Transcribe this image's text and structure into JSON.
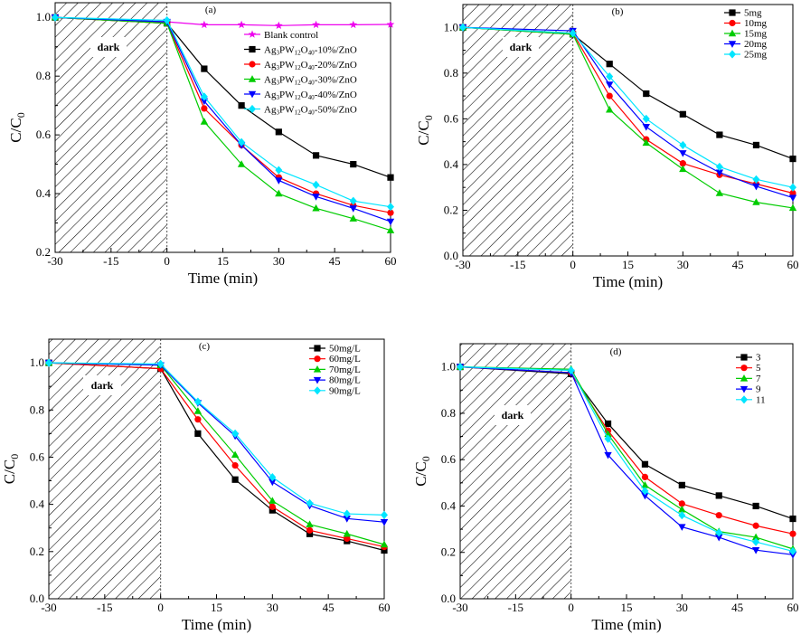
{
  "chart_data": [
    {
      "type": "line",
      "panel_label": "(a)",
      "xlabel": "Time (min)",
      "ylabel": "C/C0",
      "xlim": [
        -30,
        60
      ],
      "ylim": [
        0.2,
        1.05
      ],
      "xticks": [
        -30,
        -15,
        0,
        15,
        30,
        45,
        60
      ],
      "xtick_labels": [
        "-30",
        "-15",
        "0",
        "15",
        "30",
        "45",
        "60"
      ],
      "yticks": [
        0.2,
        0.4,
        0.6,
        0.8,
        1.0
      ],
      "ytick_labels": [
        "0.2",
        "0.4",
        "0.6",
        "0.8",
        "1.0"
      ],
      "dark_region": {
        "label": "dark",
        "x_start": -30,
        "x_end": 0
      },
      "legend_position": "top-right",
      "x": [
        -30,
        0,
        10,
        20,
        30,
        40,
        50,
        60
      ],
      "series": [
        {
          "name": "Blank control",
          "color": "#ee00ee",
          "marker": "star",
          "values": [
            1.0,
            0.985,
            0.975,
            0.975,
            0.972,
            0.975,
            0.975,
            0.976
          ]
        },
        {
          "name": "Ag3PW12O40-10%/ZnO",
          "color": "#000000",
          "marker": "square",
          "values": [
            1.0,
            0.98,
            0.825,
            0.7,
            0.61,
            0.53,
            0.5,
            0.455
          ]
        },
        {
          "name": "Ag3PW12O40-20%/ZnO",
          "color": "#ff0000",
          "marker": "circle",
          "values": [
            1.0,
            0.98,
            0.69,
            0.565,
            0.455,
            0.4,
            0.36,
            0.335
          ]
        },
        {
          "name": "Ag3PW12O40-30%/ZnO",
          "color": "#00cc00",
          "marker": "triangle-up",
          "values": [
            1.0,
            0.98,
            0.645,
            0.5,
            0.4,
            0.35,
            0.315,
            0.275
          ]
        },
        {
          "name": "Ag3PW12O40-40%/ZnO",
          "color": "#0000ff",
          "marker": "triangle-down",
          "values": [
            1.0,
            0.985,
            0.715,
            0.565,
            0.445,
            0.39,
            0.35,
            0.305
          ]
        },
        {
          "name": "Ag3PW12O40-50%/ZnO",
          "color": "#00e5ff",
          "marker": "diamond",
          "values": [
            1.0,
            0.99,
            0.73,
            0.575,
            0.48,
            0.43,
            0.375,
            0.355
          ]
        }
      ]
    },
    {
      "type": "line",
      "panel_label": "(b)",
      "xlabel": "Time (min)",
      "ylabel": "C/C0",
      "xlim": [
        -30,
        60
      ],
      "ylim": [
        0.0,
        1.1
      ],
      "xticks": [
        -30,
        -15,
        0,
        15,
        30,
        45,
        60
      ],
      "xtick_labels": [
        "-30",
        "-15",
        "0",
        "15",
        "30",
        "45",
        "60"
      ],
      "yticks": [
        0.0,
        0.2,
        0.4,
        0.6,
        0.8,
        1.0
      ],
      "ytick_labels": [
        "0.0",
        "0.2",
        "0.4",
        "0.6",
        "0.8",
        "1.0"
      ],
      "dark_region": {
        "label": "dark",
        "x_start": -30,
        "x_end": 0
      },
      "legend_position": "top-right",
      "x": [
        -30,
        0,
        10,
        20,
        30,
        40,
        50,
        60
      ],
      "series": [
        {
          "name": "5mg",
          "color": "#000000",
          "marker": "square",
          "values": [
            1.0,
            0.97,
            0.84,
            0.71,
            0.62,
            0.53,
            0.485,
            0.425
          ]
        },
        {
          "name": "10mg",
          "color": "#ff0000",
          "marker": "circle",
          "values": [
            1.0,
            0.975,
            0.7,
            0.51,
            0.405,
            0.355,
            0.315,
            0.275
          ]
        },
        {
          "name": "15mg",
          "color": "#00cc00",
          "marker": "triangle-up",
          "values": [
            1.0,
            0.97,
            0.64,
            0.495,
            0.38,
            0.275,
            0.235,
            0.21
          ]
        },
        {
          "name": "20mg",
          "color": "#0000ff",
          "marker": "triangle-down",
          "values": [
            1.0,
            0.985,
            0.75,
            0.565,
            0.45,
            0.365,
            0.305,
            0.255
          ]
        },
        {
          "name": "25mg",
          "color": "#00e5ff",
          "marker": "diamond",
          "values": [
            1.0,
            0.975,
            0.785,
            0.6,
            0.485,
            0.39,
            0.335,
            0.3
          ]
        }
      ]
    },
    {
      "type": "line",
      "panel_label": "(c)",
      "xlabel": "Time (min)",
      "ylabel": "C/C0",
      "xlim": [
        -30,
        60
      ],
      "ylim": [
        0.0,
        1.1
      ],
      "xticks": [
        -30,
        -15,
        0,
        15,
        30,
        45,
        60
      ],
      "xtick_labels": [
        "-30",
        "-15",
        "0",
        "15",
        "30",
        "45",
        "60"
      ],
      "yticks": [
        0.0,
        0.2,
        0.4,
        0.6,
        0.8,
        1.0
      ],
      "ytick_labels": [
        "0.0",
        "0.2",
        "0.4",
        "0.6",
        "0.8",
        "1.0"
      ],
      "dark_region": {
        "label": "dark",
        "x_start": -30,
        "x_end": 0
      },
      "legend_position": "top-right",
      "x": [
        -30,
        0,
        10,
        20,
        30,
        40,
        50,
        60
      ],
      "series": [
        {
          "name": "50mg/L",
          "color": "#000000",
          "marker": "square",
          "values": [
            1.0,
            0.975,
            0.7,
            0.505,
            0.375,
            0.275,
            0.245,
            0.205
          ]
        },
        {
          "name": "60mg/L",
          "color": "#ff0000",
          "marker": "circle",
          "values": [
            1.0,
            0.975,
            0.76,
            0.565,
            0.39,
            0.29,
            0.255,
            0.22
          ]
        },
        {
          "name": "70mg/L",
          "color": "#00cc00",
          "marker": "triangle-up",
          "values": [
            1.0,
            0.99,
            0.795,
            0.61,
            0.415,
            0.315,
            0.275,
            0.23
          ]
        },
        {
          "name": "80mg/L",
          "color": "#0000ff",
          "marker": "triangle-down",
          "values": [
            1.0,
            0.99,
            0.83,
            0.69,
            0.495,
            0.395,
            0.34,
            0.325
          ]
        },
        {
          "name": "90mg/L",
          "color": "#00e5ff",
          "marker": "diamond",
          "values": [
            1.0,
            0.995,
            0.835,
            0.7,
            0.515,
            0.405,
            0.36,
            0.355
          ]
        }
      ]
    },
    {
      "type": "line",
      "panel_label": "(d)",
      "xlabel": "Time (min)",
      "ylabel": "C/C0",
      "xlim": [
        -30,
        60
      ],
      "ylim": [
        0.0,
        1.1
      ],
      "xticks": [
        -30,
        -15,
        0,
        15,
        30,
        45,
        60
      ],
      "xtick_labels": [
        "-30",
        "-15",
        "0",
        "15",
        "30",
        "45",
        "60"
      ],
      "yticks": [
        0.0,
        0.2,
        0.4,
        0.6,
        0.8,
        1.0
      ],
      "ytick_labels": [
        "0.0",
        "0.2",
        "0.4",
        "0.6",
        "0.8",
        "1.0"
      ],
      "dark_region": {
        "label": "dark",
        "x_start": -30,
        "x_end": 0
      },
      "legend_position": "top-right",
      "x": [
        -30,
        0,
        10,
        20,
        30,
        40,
        50,
        60
      ],
      "series": [
        {
          "name": "3",
          "color": "#000000",
          "marker": "square",
          "values": [
            1.0,
            0.97,
            0.755,
            0.58,
            0.49,
            0.445,
            0.4,
            0.345
          ]
        },
        {
          "name": "5",
          "color": "#ff0000",
          "marker": "circle",
          "values": [
            1.0,
            0.975,
            0.725,
            0.525,
            0.41,
            0.36,
            0.315,
            0.28
          ]
        },
        {
          "name": "7",
          "color": "#00cc00",
          "marker": "triangle-up",
          "values": [
            1.0,
            0.99,
            0.71,
            0.49,
            0.385,
            0.29,
            0.265,
            0.215
          ]
        },
        {
          "name": "9",
          "color": "#0000ff",
          "marker": "triangle-down",
          "values": [
            1.0,
            0.975,
            0.62,
            0.445,
            0.31,
            0.265,
            0.21,
            0.19
          ]
        },
        {
          "name": "11",
          "color": "#00e5ff",
          "marker": "diamond",
          "values": [
            1.0,
            0.985,
            0.69,
            0.465,
            0.36,
            0.285,
            0.245,
            0.205
          ]
        }
      ]
    }
  ]
}
